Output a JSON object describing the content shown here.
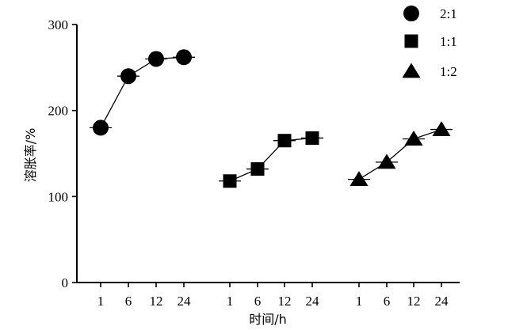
{
  "chart_data": {
    "type": "scatter",
    "xlabel": "时间/h",
    "ylabel": "溶胀率/%",
    "ylim": [
      0,
      300
    ],
    "y_ticks": [
      0,
      100,
      200,
      300
    ],
    "grid": false,
    "legend_position": "top-right",
    "series": [
      {
        "name": "2:1",
        "marker": "circle",
        "x": [
          "1",
          "6",
          "12",
          "24"
        ],
        "values": [
          180,
          240,
          260,
          262
        ]
      },
      {
        "name": "1:1",
        "marker": "square",
        "x": [
          "1",
          "6",
          "12",
          "24"
        ],
        "values": [
          118,
          132,
          165,
          168
        ]
      },
      {
        "name": "1:2",
        "marker": "triangle",
        "x": [
          "1",
          "6",
          "12",
          "24"
        ],
        "values": [
          120,
          140,
          167,
          178
        ]
      }
    ]
  }
}
